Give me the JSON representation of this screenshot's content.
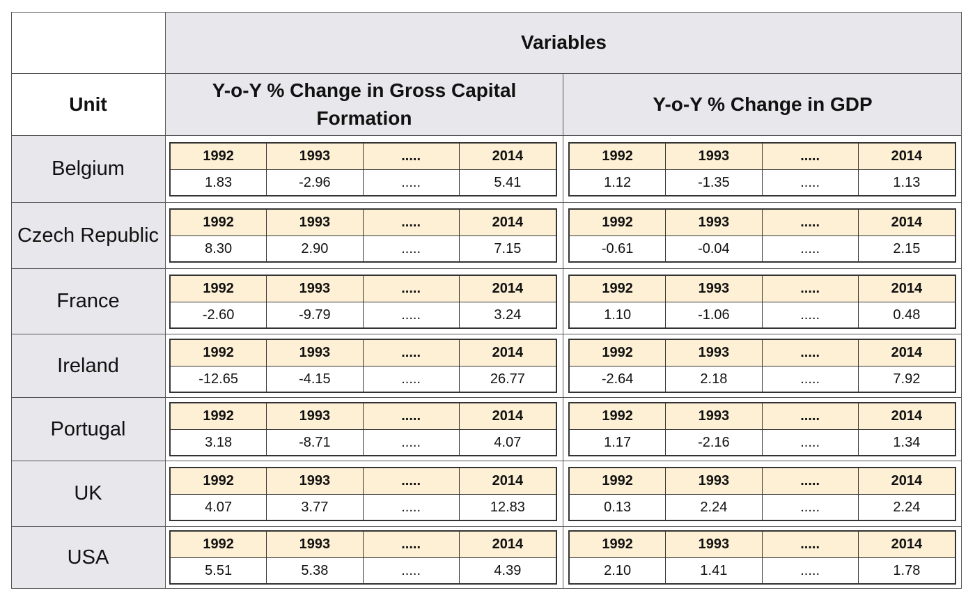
{
  "header": {
    "variables_label": "Variables",
    "unit_label": "Unit",
    "gcf_label": "Y-o-Y % Change in Gross Capital Formation",
    "gdp_label": "Y-o-Y % Change in GDP"
  },
  "colors": {
    "header_bg": "#e8e8ec",
    "year_row_bg": "#fdf0d5",
    "grid_line": "#555555"
  },
  "rows": [
    {
      "unit": "Belgium",
      "gcf": {
        "years": [
          "1992",
          "1993",
          ".....",
          "2014"
        ],
        "values": [
          "1.83",
          "-2.96",
          ".....",
          "5.41"
        ]
      },
      "gdp": {
        "years": [
          "1992",
          "1993",
          ".....",
          "2014"
        ],
        "values": [
          "1.12",
          "-1.35",
          ".....",
          "1.13"
        ]
      }
    },
    {
      "unit": "Czech Republic",
      "gcf": {
        "years": [
          "1992",
          "1993",
          ".....",
          "2014"
        ],
        "values": [
          "8.30",
          "2.90",
          ".....",
          "7.15"
        ]
      },
      "gdp": {
        "years": [
          "1992",
          "1993",
          ".....",
          "2014"
        ],
        "values": [
          "-0.61",
          "-0.04",
          ".....",
          "2.15"
        ]
      }
    },
    {
      "unit": "France",
      "gcf": {
        "years": [
          "1992",
          "1993",
          ".....",
          "2014"
        ],
        "values": [
          "-2.60",
          "-9.79",
          ".....",
          "3.24"
        ]
      },
      "gdp": {
        "years": [
          "1992",
          "1993",
          ".....",
          "2014"
        ],
        "values": [
          "1.10",
          "-1.06",
          ".....",
          "0.48"
        ]
      }
    },
    {
      "unit": "Ireland",
      "gcf": {
        "years": [
          "1992",
          "1993",
          ".....",
          "2014"
        ],
        "values": [
          "-12.65",
          "-4.15",
          ".....",
          "26.77"
        ]
      },
      "gdp": {
        "years": [
          "1992",
          "1993",
          ".....",
          "2014"
        ],
        "values": [
          "-2.64",
          "2.18",
          ".....",
          "7.92"
        ]
      }
    },
    {
      "unit": "Portugal",
      "gcf": {
        "years": [
          "1992",
          "1993",
          ".....",
          "2014"
        ],
        "values": [
          "3.18",
          "-8.71",
          ".....",
          "4.07"
        ]
      },
      "gdp": {
        "years": [
          "1992",
          "1993",
          ".....",
          "2014"
        ],
        "values": [
          "1.17",
          "-2.16",
          ".....",
          "1.34"
        ]
      }
    },
    {
      "unit": "UK",
      "gcf": {
        "years": [
          "1992",
          "1993",
          ".....",
          "2014"
        ],
        "values": [
          "4.07",
          "3.77",
          ".....",
          "12.83"
        ]
      },
      "gdp": {
        "years": [
          "1992",
          "1993",
          ".....",
          "2014"
        ],
        "values": [
          "0.13",
          "2.24",
          ".....",
          "2.24"
        ]
      }
    },
    {
      "unit": "USA",
      "gcf": {
        "years": [
          "1992",
          "1993",
          ".....",
          "2014"
        ],
        "values": [
          "5.51",
          "5.38",
          ".....",
          "4.39"
        ]
      },
      "gdp": {
        "years": [
          "1992",
          "1993",
          ".....",
          "2014"
        ],
        "values": [
          "2.10",
          "1.41",
          ".....",
          "1.78"
        ]
      }
    }
  ]
}
